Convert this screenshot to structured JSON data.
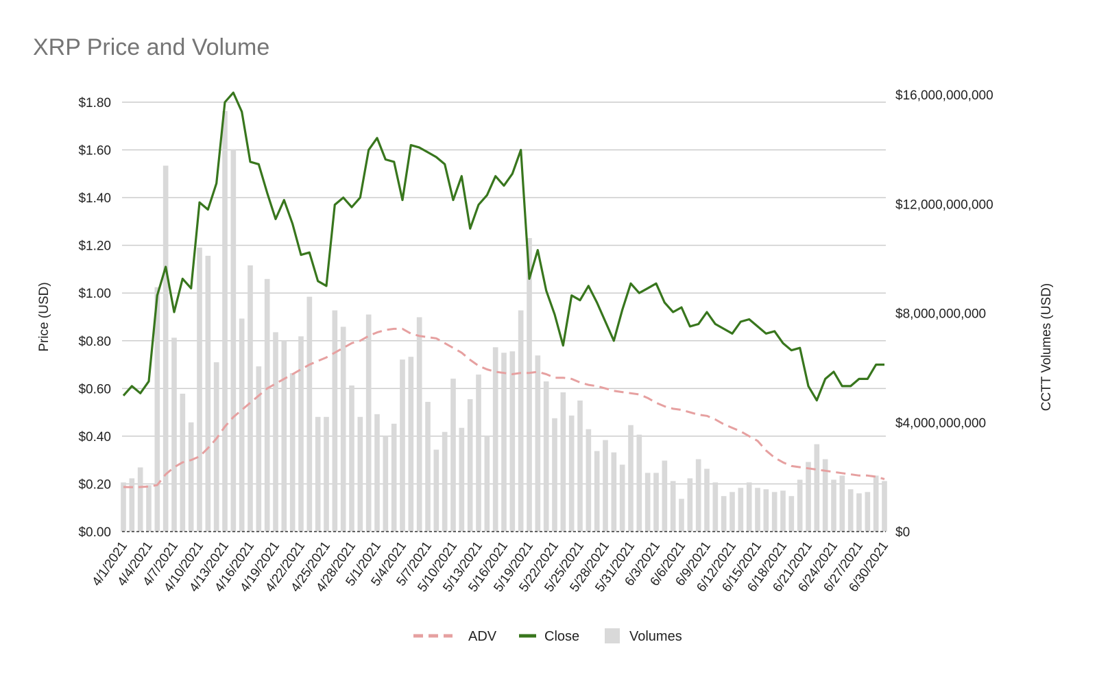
{
  "chart_data": {
    "type": "bar+line",
    "title": "XRP Price and Volume",
    "ylabel_left": "Price (USD)",
    "ylabel_right": "CCTT Volumes (USD)",
    "ylim_left": [
      0,
      1.8
    ],
    "ylim_right": [
      0,
      16000000000
    ],
    "yticks_left": [
      "$0.00",
      "$0.20",
      "$0.40",
      "$0.60",
      "$0.80",
      "$1.00",
      "$1.20",
      "$1.40",
      "$1.60",
      "$1.80"
    ],
    "yticks_right": [
      "$0",
      "$4,000,000,000",
      "$8,000,000,000",
      "$12,000,000,000",
      "$16,000,000,000"
    ],
    "xticks": [
      "4/1/2021",
      "4/4/2021",
      "4/7/2021",
      "4/10/2021",
      "4/13/2021",
      "4/16/2021",
      "4/19/2021",
      "4/22/2021",
      "4/25/2021",
      "4/28/2021",
      "5/1/2021",
      "5/4/2021",
      "5/7/2021",
      "5/10/2021",
      "5/13/2021",
      "5/16/2021",
      "5/19/2021",
      "5/22/2021",
      "5/25/2021",
      "5/28/2021",
      "5/31/2021",
      "6/3/2021",
      "6/6/2021",
      "6/9/2021",
      "6/12/2021",
      "6/15/2021",
      "6/18/2021",
      "6/21/2021",
      "6/24/2021",
      "6/27/2021",
      "6/30/2021"
    ],
    "grid": true,
    "legend_position": "bottom",
    "x": [
      "4/1/2021",
      "4/2/2021",
      "4/3/2021",
      "4/4/2021",
      "4/5/2021",
      "4/6/2021",
      "4/7/2021",
      "4/8/2021",
      "4/9/2021",
      "4/10/2021",
      "4/11/2021",
      "4/12/2021",
      "4/13/2021",
      "4/14/2021",
      "4/15/2021",
      "4/16/2021",
      "4/17/2021",
      "4/18/2021",
      "4/19/2021",
      "4/20/2021",
      "4/21/2021",
      "4/22/2021",
      "4/23/2021",
      "4/24/2021",
      "4/25/2021",
      "4/26/2021",
      "4/27/2021",
      "4/28/2021",
      "4/29/2021",
      "4/30/2021",
      "5/1/2021",
      "5/2/2021",
      "5/3/2021",
      "5/4/2021",
      "5/5/2021",
      "5/6/2021",
      "5/7/2021",
      "5/8/2021",
      "5/9/2021",
      "5/10/2021",
      "5/11/2021",
      "5/12/2021",
      "5/13/2021",
      "5/14/2021",
      "5/15/2021",
      "5/16/2021",
      "5/17/2021",
      "5/18/2021",
      "5/19/2021",
      "5/20/2021",
      "5/21/2021",
      "5/22/2021",
      "5/23/2021",
      "5/24/2021",
      "5/25/2021",
      "5/26/2021",
      "5/27/2021",
      "5/28/2021",
      "5/29/2021",
      "5/30/2021",
      "5/31/2021",
      "6/1/2021",
      "6/2/2021",
      "6/3/2021",
      "6/4/2021",
      "6/5/2021",
      "6/6/2021",
      "6/7/2021",
      "6/8/2021",
      "6/9/2021",
      "6/10/2021",
      "6/11/2021",
      "6/12/2021",
      "6/13/2021",
      "6/14/2021",
      "6/15/2021",
      "6/16/2021",
      "6/17/2021",
      "6/18/2021",
      "6/19/2021",
      "6/20/2021",
      "6/21/2021",
      "6/22/2021",
      "6/23/2021",
      "6/24/2021",
      "6/25/2021",
      "6/26/2021",
      "6/27/2021",
      "6/28/2021",
      "6/29/2021",
      "6/30/2021"
    ],
    "series": [
      {
        "name": "Volumes",
        "type": "bar",
        "axis": "right",
        "color": "#d9d9d9",
        "values": [
          1800000000,
          1950000000,
          2350000000,
          1700000000,
          8950000000,
          13400000000,
          7100000000,
          5050000000,
          4000000000,
          10400000000,
          10100000000,
          6200000000,
          15400000000,
          14000000000,
          7800000000,
          9750000000,
          6050000000,
          9250000000,
          7300000000,
          7000000000,
          5800000000,
          7150000000,
          8600000000,
          4200000000,
          4200000000,
          8100000000,
          7500000000,
          5350000000,
          4200000000,
          7950000000,
          4300000000,
          3500000000,
          3950000000,
          6300000000,
          6400000000,
          7850000000,
          4750000000,
          3000000000,
          3650000000,
          5600000000,
          3800000000,
          4850000000,
          5750000000,
          3500000000,
          6750000000,
          6550000000,
          6600000000,
          8100000000,
          10750000000,
          6450000000,
          5500000000,
          4150000000,
          5100000000,
          4250000000,
          4800000000,
          3750000000,
          2950000000,
          3350000000,
          2900000000,
          2450000000,
          3900000000,
          3550000000,
          2150000000,
          2150000000,
          2600000000,
          1850000000,
          1200000000,
          1950000000,
          2650000000,
          2300000000,
          1800000000,
          1300000000,
          1450000000,
          1600000000,
          1800000000,
          1600000000,
          1550000000,
          1450000000,
          1500000000,
          1300000000,
          1900000000,
          2550000000,
          3200000000,
          2650000000,
          1900000000,
          2050000000,
          1550000000,
          1400000000,
          1450000000,
          2050000000,
          1850000000
        ]
      },
      {
        "name": "Close",
        "type": "line",
        "axis": "left",
        "color": "#38761d",
        "values": [
          0.57,
          0.61,
          0.58,
          0.63,
          0.99,
          1.11,
          0.92,
          1.06,
          1.02,
          1.38,
          1.35,
          1.46,
          1.8,
          1.84,
          1.76,
          1.55,
          1.54,
          1.42,
          1.31,
          1.39,
          1.29,
          1.16,
          1.17,
          1.05,
          1.03,
          1.37,
          1.4,
          1.36,
          1.4,
          1.6,
          1.65,
          1.56,
          1.55,
          1.39,
          1.62,
          1.61,
          1.59,
          1.57,
          1.54,
          1.39,
          1.49,
          1.27,
          1.37,
          1.41,
          1.49,
          1.45,
          1.5,
          1.6,
          1.06,
          1.18,
          1.01,
          0.91,
          0.78,
          0.99,
          0.97,
          1.03,
          0.96,
          0.88,
          0.8,
          0.93,
          1.04,
          1.0,
          1.02,
          1.04,
          0.96,
          0.92,
          0.94,
          0.86,
          0.87,
          0.92,
          0.87,
          0.85,
          0.83,
          0.88,
          0.89,
          0.86,
          0.83,
          0.84,
          0.79,
          0.76,
          0.77,
          0.61,
          0.55,
          0.64,
          0.67,
          0.61,
          0.61,
          0.64,
          0.64,
          0.7,
          0.7
        ]
      },
      {
        "name": "ADV",
        "type": "line",
        "dash": true,
        "axis": "left",
        "color": "#e6a0a0",
        "values": [
          0.187,
          0.186,
          0.187,
          0.189,
          0.195,
          0.24,
          0.27,
          0.29,
          0.3,
          0.315,
          0.35,
          0.39,
          0.44,
          0.48,
          0.51,
          0.54,
          0.57,
          0.6,
          0.62,
          0.64,
          0.66,
          0.68,
          0.7,
          0.715,
          0.73,
          0.75,
          0.77,
          0.79,
          0.8,
          0.82,
          0.835,
          0.845,
          0.85,
          0.85,
          0.83,
          0.82,
          0.815,
          0.81,
          0.79,
          0.77,
          0.75,
          0.72,
          0.695,
          0.68,
          0.67,
          0.665,
          0.66,
          0.665,
          0.665,
          0.67,
          0.66,
          0.645,
          0.645,
          0.64,
          0.625,
          0.615,
          0.61,
          0.6,
          0.59,
          0.585,
          0.58,
          0.575,
          0.56,
          0.54,
          0.525,
          0.515,
          0.51,
          0.5,
          0.49,
          0.485,
          0.47,
          0.45,
          0.435,
          0.42,
          0.4,
          0.38,
          0.34,
          0.31,
          0.29,
          0.275,
          0.27,
          0.265,
          0.26,
          0.255,
          0.25,
          0.245,
          0.24,
          0.235,
          0.235,
          0.23,
          0.22
        ]
      }
    ],
    "legend": [
      {
        "label": "ADV",
        "color": "#e6a0a0",
        "style": "dashed"
      },
      {
        "label": "Close",
        "color": "#38761d",
        "style": "solid"
      },
      {
        "label": "Volumes",
        "color": "#d9d9d9",
        "style": "box"
      }
    ]
  }
}
